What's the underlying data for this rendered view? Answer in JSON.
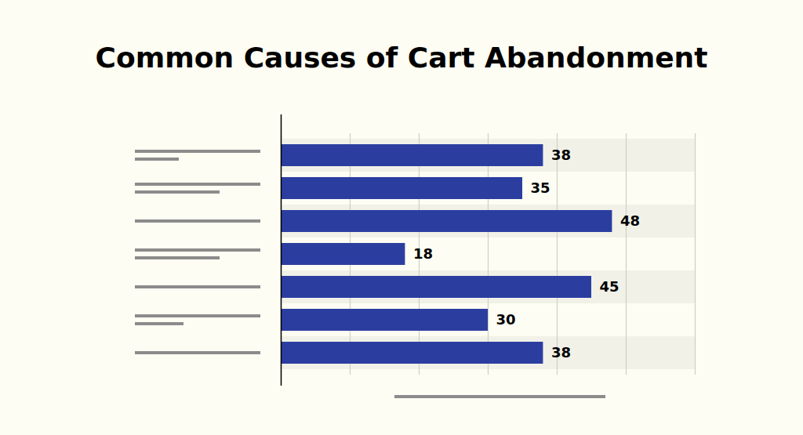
{
  "chart_data": {
    "type": "bar",
    "title": "Common Causes of Cart Abandonment",
    "orientation": "horizontal",
    "categories": [
      null,
      null,
      null,
      null,
      null,
      null,
      null
    ],
    "values": [
      38,
      35,
      48,
      18,
      45,
      30,
      38
    ],
    "color": "#2b3ea0",
    "xlim": [
      0,
      60
    ],
    "xticks": [
      0,
      10,
      20,
      30,
      40,
      50,
      60
    ],
    "grid": true,
    "data_labels": true,
    "tick_labels": false
  }
}
